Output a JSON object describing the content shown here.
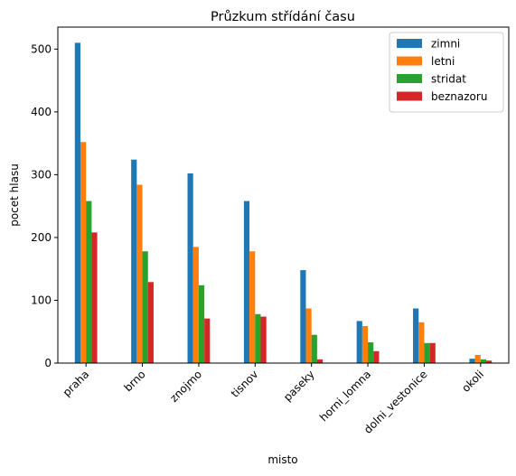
{
  "chart_data": {
    "type": "bar",
    "title": "Průzkum střídání času",
    "xlabel": "misto",
    "ylabel": "pocet hlasu",
    "ylim": [
      0,
      535
    ],
    "yticks": [
      0,
      100,
      200,
      300,
      400,
      500
    ],
    "categories": [
      "praha",
      "brno",
      "znojmo",
      "tisnov",
      "paseky",
      "horni_lomna",
      "dolni_vestonice",
      "okoli"
    ],
    "series": [
      {
        "name": "zimni",
        "color": "#1f77b4",
        "values": [
          510,
          324,
          302,
          258,
          148,
          67,
          87,
          7
        ]
      },
      {
        "name": "letni",
        "color": "#ff7f0e",
        "values": [
          352,
          284,
          185,
          178,
          87,
          59,
          65,
          13
        ]
      },
      {
        "name": "stridat",
        "color": "#2ca02c",
        "values": [
          258,
          178,
          124,
          78,
          45,
          33,
          32,
          6
        ]
      },
      {
        "name": "beznazoru",
        "color": "#d62728",
        "values": [
          208,
          129,
          71,
          74,
          6,
          19,
          32,
          4
        ]
      }
    ],
    "legend_position": "top-right",
    "grid": false
  }
}
